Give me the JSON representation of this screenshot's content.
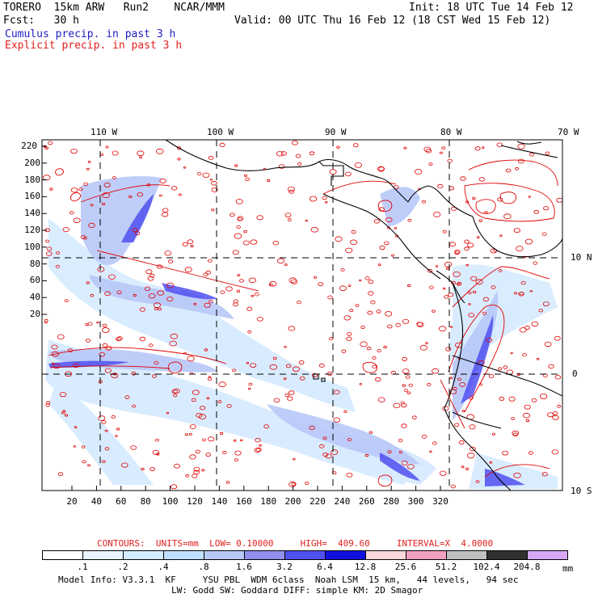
{
  "header": {
    "model": "TORERO  15km ARW   Run2    NCAR/MMM",
    "init": "Init: 18 UTC Tue 14 Feb 12",
    "fcst": "Fcst:   30 h",
    "valid": "Valid: 00 UTC Thu 16 Feb 12 (18 CST Wed 15 Feb 12)",
    "field1": "Cumulus precip. in past 3 h",
    "field2": "Explicit precip. in past 3 h"
  },
  "map": {
    "top_lon_labels": [
      "110 W",
      "100 W",
      "90 W",
      "80 W",
      "70 W"
    ],
    "right_lat_labels": [
      "10 N",
      "0",
      "10 S"
    ],
    "left_ticks": [
      "220",
      "200",
      "180",
      "160",
      "140",
      "120",
      "100",
      "80",
      "60",
      "40",
      "20"
    ],
    "bottom_ticks": [
      "20",
      "40",
      "60",
      "80",
      "100",
      "120",
      "140",
      "160",
      "180",
      "200",
      "220",
      "240",
      "260",
      "280",
      "300",
      "320"
    ],
    "colors": {
      "land": "#000000",
      "contour": "#e00000",
      "grid": "#000000"
    }
  },
  "contour_info": "CONTOURS:  UNITS=mm  LOW= 0.10000     HIGH=  409.60     INTERVAL=X  4.0000",
  "colorbar": {
    "labels": [
      ".1",
      ".2",
      ".4",
      ".8",
      "1.6",
      "3.2",
      "6.4",
      "12.8",
      "25.6",
      "51.2",
      "102.4",
      "204.8"
    ],
    "colors": [
      "#ffffff",
      "#e8f4ff",
      "#d4ecff",
      "#c0e0ff",
      "#b8c8f8",
      "#9090f0",
      "#5050f0",
      "#1010e0",
      "#f8d8d8",
      "#f0a0c0",
      "#c0c0c0",
      "#303030",
      "#d8a8f8"
    ],
    "unit": "mm"
  },
  "footer": {
    "line1": "Model Info: V3.3.1  KF     YSU PBL  WDM 6class  Noah LSM  15 km,   44 levels,   94 sec",
    "line2": "LW: Godd SW: Goddard DIFF: simple KM: 2D Smagor"
  }
}
